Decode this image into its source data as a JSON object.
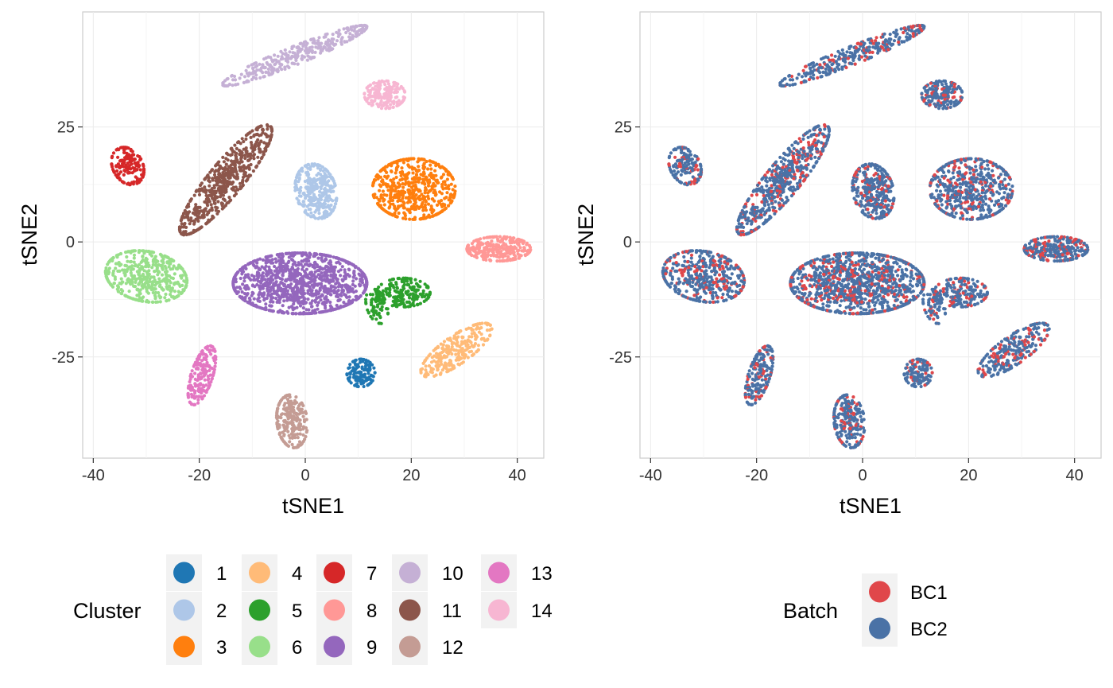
{
  "chart_data": [
    {
      "type": "scatter",
      "xlabel": "tSNE1",
      "ylabel": "tSNE2",
      "xlim": [
        -42,
        45
      ],
      "ylim": [
        -47,
        50
      ],
      "x_ticks": [
        -40,
        -20,
        0,
        20,
        40
      ],
      "y_ticks": [
        -25,
        0,
        25
      ],
      "x_tick_labels": [
        "-40",
        "-20",
        "0",
        "20",
        "40"
      ],
      "y_tick_labels": [
        "-25",
        "0",
        "25"
      ],
      "grid": true,
      "legend": {
        "title": "Cluster",
        "placement": "bottom",
        "entries": [
          {
            "label": "1",
            "color": "#1f77b4"
          },
          {
            "label": "2",
            "color": "#aec7e8"
          },
          {
            "label": "3",
            "color": "#ff7f0e"
          },
          {
            "label": "4",
            "color": "#ffbb78"
          },
          {
            "label": "5",
            "color": "#2ca02c"
          },
          {
            "label": "6",
            "color": "#98df8a"
          },
          {
            "label": "7",
            "color": "#d62728"
          },
          {
            "label": "8",
            "color": "#ff9896"
          },
          {
            "label": "9",
            "color": "#9467bd"
          },
          {
            "label": "10",
            "color": "#c5b0d5"
          },
          {
            "label": "11",
            "color": "#8c564b"
          },
          {
            "label": "12",
            "color": "#c49c94"
          },
          {
            "label": "13",
            "color": "#e377c2"
          },
          {
            "label": "14",
            "color": "#f7b6d2"
          }
        ]
      },
      "clusters": [
        {
          "label": "1",
          "color": "#1f77b4",
          "center": [
            10.5,
            -28.5
          ],
          "spread": [
            2.2,
            2.5
          ],
          "angle": 0,
          "n": 140
        },
        {
          "label": "2",
          "color": "#aec7e8",
          "center": [
            2.0,
            11.0
          ],
          "spread": [
            3.2,
            5.0
          ],
          "angle": 10,
          "n": 330
        },
        {
          "label": "3",
          "color": "#ff7f0e",
          "center": [
            20.5,
            11.5
          ],
          "spread": [
            6.5,
            5.5
          ],
          "angle": 0,
          "n": 560
        },
        {
          "label": "4",
          "color": "#ffbb78",
          "center": [
            28.5,
            -23.5
          ],
          "spread": [
            2.4,
            7.0
          ],
          "angle": -50,
          "n": 260
        },
        {
          "label": "5",
          "color": "#2ca02c",
          "center": [
            18.5,
            -11.0
          ],
          "spread": [
            4.2,
            2.6
          ],
          "angle": 0,
          "n": 200
        },
        {
          "label": "5",
          "color": "#2ca02c",
          "center": [
            13.5,
            -14.0
          ],
          "spread": [
            1.6,
            3.2
          ],
          "angle": 15,
          "n": 70
        },
        {
          "label": "6",
          "color": "#98df8a",
          "center": [
            -30.0,
            -7.5
          ],
          "spread": [
            6.5,
            4.5
          ],
          "angle": -15,
          "n": 460
        },
        {
          "label": "7",
          "color": "#d62728",
          "center": [
            -33.5,
            16.5
          ],
          "spread": [
            2.4,
            3.5
          ],
          "angle": 20,
          "n": 160
        },
        {
          "label": "8",
          "color": "#ff9896",
          "center": [
            36.5,
            -1.5
          ],
          "spread": [
            5.0,
            2.2
          ],
          "angle": 0,
          "n": 300
        },
        {
          "label": "9",
          "color": "#9467bd",
          "center": [
            -1.0,
            -9.0
          ],
          "spread": [
            10.5,
            5.5
          ],
          "angle": 0,
          "n": 1150
        },
        {
          "label": "10",
          "color": "#c5b0d5",
          "center": [
            -2.0,
            40.5
          ],
          "spread": [
            12.5,
            1.6
          ],
          "angle": 25,
          "n": 330
        },
        {
          "label": "11",
          "color": "#8c564b",
          "center": [
            -15.0,
            13.5
          ],
          "spread": [
            2.8,
            12.0
          ],
          "angle": -35,
          "n": 620
        },
        {
          "label": "12",
          "color": "#c49c94",
          "center": [
            -2.5,
            -39.0
          ],
          "spread": [
            2.4,
            4.8
          ],
          "angle": 5,
          "n": 230
        },
        {
          "label": "13",
          "color": "#e377c2",
          "center": [
            -19.5,
            -29.0
          ],
          "spread": [
            1.7,
            5.5
          ],
          "angle": -15,
          "n": 200
        },
        {
          "label": "14",
          "color": "#f7b6d2",
          "center": [
            15.0,
            32.0
          ],
          "spread": [
            3.2,
            2.5
          ],
          "angle": 0,
          "n": 180
        }
      ]
    },
    {
      "type": "scatter",
      "xlabel": "tSNE1",
      "ylabel": "tSNE2",
      "xlim": [
        -42,
        45
      ],
      "ylim": [
        -47,
        50
      ],
      "x_ticks": [
        -40,
        -20,
        0,
        20,
        40
      ],
      "y_ticks": [
        -25,
        0,
        25
      ],
      "x_tick_labels": [
        "-40",
        "-20",
        "0",
        "20",
        "40"
      ],
      "y_tick_labels": [
        "-25",
        "0",
        "25"
      ],
      "grid": true,
      "legend": {
        "title": "Batch",
        "placement": "bottom",
        "entries": [
          {
            "label": "BC1",
            "color": "#e41a1c"
          },
          {
            "label": "BC2",
            "color": "#4472a6"
          }
        ]
      },
      "batch_colors": {
        "BC1": "#e0474a",
        "BC2": "#4a72a6"
      },
      "batch_mix": {
        "BC1": 0.25,
        "BC2": 0.75
      }
    }
  ]
}
